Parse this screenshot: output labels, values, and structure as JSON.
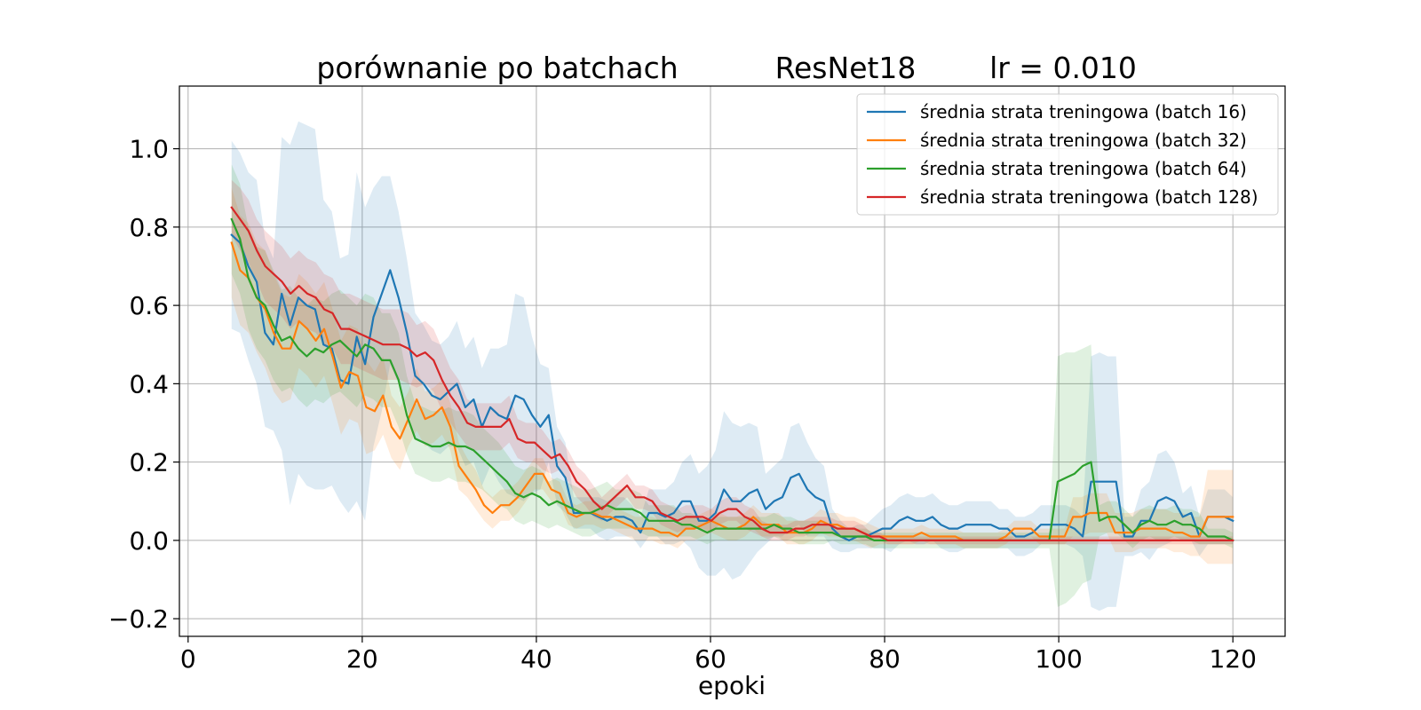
{
  "chart_data": {
    "type": "line",
    "title_parts": [
      "porównanie po batchach",
      "ResNet18",
      "lr = 0.010"
    ],
    "xlabel": "epoki",
    "ylabel": "",
    "xlim": [
      -1,
      126
    ],
    "ylim": [
      -0.245,
      1.16
    ],
    "x_ticks": [
      0,
      20,
      40,
      60,
      80,
      100,
      120
    ],
    "y_ticks": [
      -0.2,
      0.0,
      0.2,
      0.4,
      0.6,
      0.8,
      1.0
    ],
    "y_tick_labels": [
      "−0.2",
      "0.0",
      "0.2",
      "0.4",
      "0.6",
      "0.8",
      "1.0"
    ],
    "grid": true,
    "legend_position": "top-right",
    "x_start": 5,
    "x_end": 120,
    "series": [
      {
        "name": "średnia strata treningowa (batch 16)",
        "color": "#1f77b4",
        "band_opacity": 0.15,
        "values": [
          0.78,
          0.76,
          0.7,
          0.66,
          0.53,
          0.5,
          0.63,
          0.55,
          0.62,
          0.6,
          0.59,
          0.5,
          0.49,
          0.41,
          0.4,
          0.52,
          0.45,
          0.57,
          0.63,
          0.69,
          0.62,
          0.53,
          0.42,
          0.4,
          0.37,
          0.36,
          0.38,
          0.4,
          0.34,
          0.36,
          0.29,
          0.34,
          0.32,
          0.31,
          0.37,
          0.36,
          0.32,
          0.29,
          0.32,
          0.19,
          0.16,
          0.07,
          0.07,
          0.07,
          0.06,
          0.05,
          0.06,
          0.06,
          0.05,
          0.02,
          0.07,
          0.07,
          0.06,
          0.07,
          0.1,
          0.1,
          0.05,
          0.05,
          0.07,
          0.13,
          0.1,
          0.1,
          0.12,
          0.13,
          0.08,
          0.1,
          0.11,
          0.16,
          0.17,
          0.13,
          0.11,
          0.1,
          0.03,
          0.01,
          0.0,
          0.01,
          0.01,
          0.02,
          0.03,
          0.03,
          0.05,
          0.06,
          0.05,
          0.05,
          0.06,
          0.04,
          0.03,
          0.03,
          0.04,
          0.04,
          0.04,
          0.04,
          0.03,
          0.03,
          0.01,
          0.01,
          0.02,
          0.04,
          0.04,
          0.04,
          0.04,
          0.03,
          0.01,
          0.15,
          0.15,
          0.15,
          0.15,
          0.01,
          0.01,
          0.05,
          0.05,
          0.1,
          0.11,
          0.1,
          0.06,
          0.07,
          0.01,
          0.06,
          0.06,
          0.06,
          0.05
        ],
        "spread": [
          0.24,
          0.23,
          0.24,
          0.26,
          0.24,
          0.22,
          0.4,
          0.46,
          0.45,
          0.46,
          0.46,
          0.37,
          0.35,
          0.31,
          0.33,
          0.42,
          0.4,
          0.33,
          0.3,
          0.24,
          0.22,
          0.19,
          0.16,
          0.15,
          0.14,
          0.14,
          0.14,
          0.16,
          0.15,
          0.16,
          0.15,
          0.15,
          0.17,
          0.19,
          0.26,
          0.26,
          0.2,
          0.16,
          0.12,
          0.1,
          0.09,
          0.04,
          0.04,
          0.04,
          0.05,
          0.05,
          0.05,
          0.05,
          0.04,
          0.04,
          0.06,
          0.06,
          0.07,
          0.08,
          0.1,
          0.12,
          0.12,
          0.14,
          0.16,
          0.2,
          0.2,
          0.19,
          0.18,
          0.16,
          0.09,
          0.09,
          0.1,
          0.13,
          0.13,
          0.12,
          0.1,
          0.09,
          0.05,
          0.04,
          0.03,
          0.03,
          0.03,
          0.04,
          0.05,
          0.06,
          0.06,
          0.06,
          0.06,
          0.06,
          0.06,
          0.06,
          0.06,
          0.06,
          0.06,
          0.06,
          0.06,
          0.06,
          0.05,
          0.05,
          0.05,
          0.05,
          0.05,
          0.05,
          0.05,
          0.05,
          0.05,
          0.05,
          0.05,
          0.32,
          0.33,
          0.32,
          0.32,
          0.05,
          0.05,
          0.08,
          0.1,
          0.12,
          0.12,
          0.1,
          0.06,
          0.07,
          0.05,
          0.07,
          0.07,
          0.07,
          0.06
        ]
      },
      {
        "name": "średnia strata treningowa (batch 32)",
        "color": "#ff7f0e",
        "band_opacity": 0.15,
        "values": [
          0.76,
          0.69,
          0.67,
          0.62,
          0.59,
          0.53,
          0.49,
          0.49,
          0.56,
          0.54,
          0.51,
          0.54,
          0.47,
          0.39,
          0.43,
          0.42,
          0.34,
          0.33,
          0.37,
          0.29,
          0.26,
          0.31,
          0.36,
          0.31,
          0.32,
          0.34,
          0.29,
          0.19,
          0.16,
          0.13,
          0.09,
          0.07,
          0.09,
          0.09,
          0.11,
          0.14,
          0.17,
          0.17,
          0.13,
          0.12,
          0.07,
          0.06,
          0.07,
          0.07,
          0.06,
          0.06,
          0.05,
          0.04,
          0.03,
          0.03,
          0.03,
          0.02,
          0.02,
          0.01,
          0.03,
          0.03,
          0.04,
          0.05,
          0.04,
          0.03,
          0.03,
          0.04,
          0.06,
          0.04,
          0.04,
          0.04,
          0.02,
          0.02,
          0.02,
          0.03,
          0.05,
          0.04,
          0.04,
          0.03,
          0.03,
          0.02,
          0.01,
          0.01,
          0.01,
          0.01,
          0.01,
          0.01,
          0.02,
          0.01,
          0.01,
          0.01,
          0.01,
          0.0,
          0.0,
          0.0,
          0.0,
          0.0,
          0.01,
          0.03,
          0.03,
          0.03,
          0.01,
          0.01,
          0.01,
          0.01,
          0.06,
          0.06,
          0.07,
          0.07,
          0.07,
          0.02,
          0.02,
          0.02,
          0.03,
          0.03,
          0.03,
          0.03,
          0.02,
          0.02,
          0.01,
          0.01,
          0.06,
          0.06,
          0.06,
          0.06
        ],
        "spread": [
          0.14,
          0.14,
          0.14,
          0.14,
          0.15,
          0.15,
          0.14,
          0.13,
          0.12,
          0.12,
          0.12,
          0.12,
          0.12,
          0.12,
          0.12,
          0.12,
          0.12,
          0.1,
          0.1,
          0.08,
          0.08,
          0.07,
          0.08,
          0.07,
          0.07,
          0.07,
          0.06,
          0.06,
          0.05,
          0.05,
          0.04,
          0.04,
          0.04,
          0.04,
          0.04,
          0.04,
          0.04,
          0.04,
          0.03,
          0.03,
          0.03,
          0.03,
          0.03,
          0.03,
          0.03,
          0.03,
          0.03,
          0.03,
          0.03,
          0.03,
          0.03,
          0.03,
          0.03,
          0.03,
          0.03,
          0.03,
          0.03,
          0.03,
          0.03,
          0.03,
          0.03,
          0.03,
          0.03,
          0.03,
          0.03,
          0.03,
          0.03,
          0.03,
          0.03,
          0.03,
          0.03,
          0.03,
          0.03,
          0.03,
          0.03,
          0.03,
          0.03,
          0.02,
          0.02,
          0.02,
          0.02,
          0.02,
          0.02,
          0.02,
          0.02,
          0.02,
          0.02,
          0.02,
          0.02,
          0.02,
          0.02,
          0.02,
          0.02,
          0.02,
          0.02,
          0.02,
          0.02,
          0.02,
          0.02,
          0.02,
          0.05,
          0.05,
          0.05,
          0.05,
          0.05,
          0.05,
          0.05,
          0.05,
          0.05,
          0.05,
          0.05,
          0.05,
          0.05,
          0.05,
          0.05,
          0.05,
          0.12,
          0.12,
          0.12,
          0.12
        ]
      },
      {
        "name": "średnia strata treningowa (batch 64)",
        "color": "#2ca02c",
        "band_opacity": 0.15,
        "values": [
          0.82,
          0.77,
          0.67,
          0.62,
          0.6,
          0.55,
          0.51,
          0.52,
          0.49,
          0.47,
          0.49,
          0.48,
          0.5,
          0.51,
          0.49,
          0.47,
          0.5,
          0.49,
          0.46,
          0.46,
          0.41,
          0.32,
          0.26,
          0.25,
          0.24,
          0.24,
          0.25,
          0.24,
          0.24,
          0.23,
          0.21,
          0.19,
          0.17,
          0.15,
          0.12,
          0.11,
          0.12,
          0.11,
          0.09,
          0.1,
          0.09,
          0.08,
          0.07,
          0.07,
          0.08,
          0.09,
          0.08,
          0.08,
          0.08,
          0.07,
          0.05,
          0.05,
          0.05,
          0.05,
          0.04,
          0.04,
          0.03,
          0.02,
          0.03,
          0.03,
          0.03,
          0.03,
          0.03,
          0.03,
          0.03,
          0.04,
          0.03,
          0.03,
          0.02,
          0.02,
          0.02,
          0.02,
          0.02,
          0.01,
          0.01,
          0.01,
          0.01,
          0.0,
          0.0,
          0.0,
          0.0,
          0.0,
          0.0,
          0.0,
          0.0,
          0.0,
          0.0,
          0.0,
          0.0,
          0.0,
          0.0,
          0.0,
          0.0,
          0.0,
          0.0,
          0.0,
          0.0,
          0.0,
          0.0,
          0.15,
          0.16,
          0.17,
          0.19,
          0.2,
          0.05,
          0.06,
          0.06,
          0.04,
          0.02,
          0.04,
          0.05,
          0.04,
          0.04,
          0.05,
          0.04,
          0.04,
          0.03,
          0.01,
          0.01,
          0.01,
          0.0
        ],
        "spread": [
          0.14,
          0.14,
          0.13,
          0.13,
          0.14,
          0.14,
          0.13,
          0.13,
          0.13,
          0.13,
          0.13,
          0.13,
          0.13,
          0.13,
          0.13,
          0.13,
          0.13,
          0.13,
          0.12,
          0.12,
          0.12,
          0.1,
          0.09,
          0.09,
          0.09,
          0.09,
          0.09,
          0.09,
          0.09,
          0.09,
          0.08,
          0.08,
          0.08,
          0.07,
          0.07,
          0.07,
          0.07,
          0.07,
          0.06,
          0.06,
          0.06,
          0.06,
          0.06,
          0.06,
          0.06,
          0.06,
          0.05,
          0.05,
          0.05,
          0.05,
          0.04,
          0.04,
          0.04,
          0.04,
          0.03,
          0.03,
          0.03,
          0.03,
          0.03,
          0.03,
          0.03,
          0.03,
          0.03,
          0.03,
          0.03,
          0.03,
          0.03,
          0.03,
          0.03,
          0.03,
          0.03,
          0.03,
          0.02,
          0.02,
          0.02,
          0.02,
          0.02,
          0.02,
          0.02,
          0.02,
          0.02,
          0.02,
          0.02,
          0.02,
          0.02,
          0.02,
          0.02,
          0.02,
          0.02,
          0.02,
          0.02,
          0.02,
          0.02,
          0.02,
          0.02,
          0.02,
          0.02,
          0.02,
          0.02,
          0.32,
          0.32,
          0.31,
          0.3,
          0.3,
          0.04,
          0.04,
          0.04,
          0.04,
          0.04,
          0.04,
          0.04,
          0.04,
          0.04,
          0.04,
          0.04,
          0.04,
          0.04,
          0.02,
          0.02,
          0.02,
          0.02
        ]
      },
      {
        "name": "średnia strata treningowa (batch 128)",
        "color": "#d62728",
        "band_opacity": 0.15,
        "values": [
          0.85,
          0.82,
          0.79,
          0.74,
          0.7,
          0.68,
          0.66,
          0.63,
          0.65,
          0.63,
          0.62,
          0.59,
          0.58,
          0.54,
          0.54,
          0.53,
          0.52,
          0.51,
          0.5,
          0.5,
          0.5,
          0.49,
          0.47,
          0.48,
          0.46,
          0.41,
          0.37,
          0.34,
          0.3,
          0.29,
          0.29,
          0.29,
          0.29,
          0.31,
          0.26,
          0.25,
          0.25,
          0.23,
          0.21,
          0.22,
          0.19,
          0.15,
          0.13,
          0.1,
          0.08,
          0.1,
          0.12,
          0.14,
          0.11,
          0.11,
          0.1,
          0.07,
          0.06,
          0.05,
          0.06,
          0.06,
          0.06,
          0.05,
          0.07,
          0.08,
          0.08,
          0.06,
          0.05,
          0.03,
          0.02,
          0.02,
          0.02,
          0.03,
          0.03,
          0.04,
          0.04,
          0.04,
          0.03,
          0.03,
          0.03,
          0.02,
          0.01,
          0.01,
          0.0,
          0.0,
          0.0,
          0.0,
          0.0,
          0.0,
          0.0,
          0.0,
          0.0,
          0.0,
          0.0,
          0.0,
          0.0,
          0.0,
          0.0,
          0.0,
          0.0,
          0.0,
          0.0,
          0.0,
          0.0,
          0.0,
          0.0,
          0.0,
          0.0,
          0.0,
          0.0,
          0.0,
          0.0,
          0.0,
          0.0,
          0.0,
          0.0,
          0.0,
          0.0,
          0.0,
          0.0,
          0.0,
          0.0,
          0.0,
          0.0,
          0.0
        ],
        "spread": [
          0.07,
          0.08,
          0.08,
          0.08,
          0.09,
          0.09,
          0.09,
          0.09,
          0.09,
          0.09,
          0.09,
          0.09,
          0.09,
          0.09,
          0.09,
          0.09,
          0.09,
          0.09,
          0.09,
          0.09,
          0.09,
          0.09,
          0.08,
          0.08,
          0.08,
          0.08,
          0.07,
          0.07,
          0.06,
          0.06,
          0.06,
          0.06,
          0.06,
          0.06,
          0.05,
          0.05,
          0.05,
          0.05,
          0.04,
          0.04,
          0.04,
          0.04,
          0.04,
          0.04,
          0.03,
          0.03,
          0.03,
          0.03,
          0.03,
          0.03,
          0.03,
          0.03,
          0.03,
          0.03,
          0.03,
          0.03,
          0.03,
          0.03,
          0.03,
          0.03,
          0.03,
          0.03,
          0.03,
          0.02,
          0.02,
          0.02,
          0.02,
          0.02,
          0.02,
          0.02,
          0.02,
          0.02,
          0.02,
          0.02,
          0.02,
          0.02,
          0.01,
          0.01,
          0.01,
          0.01,
          0.01,
          0.01,
          0.01,
          0.01,
          0.01,
          0.01,
          0.01,
          0.01,
          0.01,
          0.01,
          0.01,
          0.01,
          0.01,
          0.01,
          0.01,
          0.01,
          0.01,
          0.01,
          0.01,
          0.01,
          0.01,
          0.01,
          0.01,
          0.01,
          0.01,
          0.01,
          0.01,
          0.01,
          0.01,
          0.01,
          0.01,
          0.01,
          0.01,
          0.01,
          0.01,
          0.01,
          0.01,
          0.01,
          0.01,
          0.01
        ]
      }
    ]
  }
}
